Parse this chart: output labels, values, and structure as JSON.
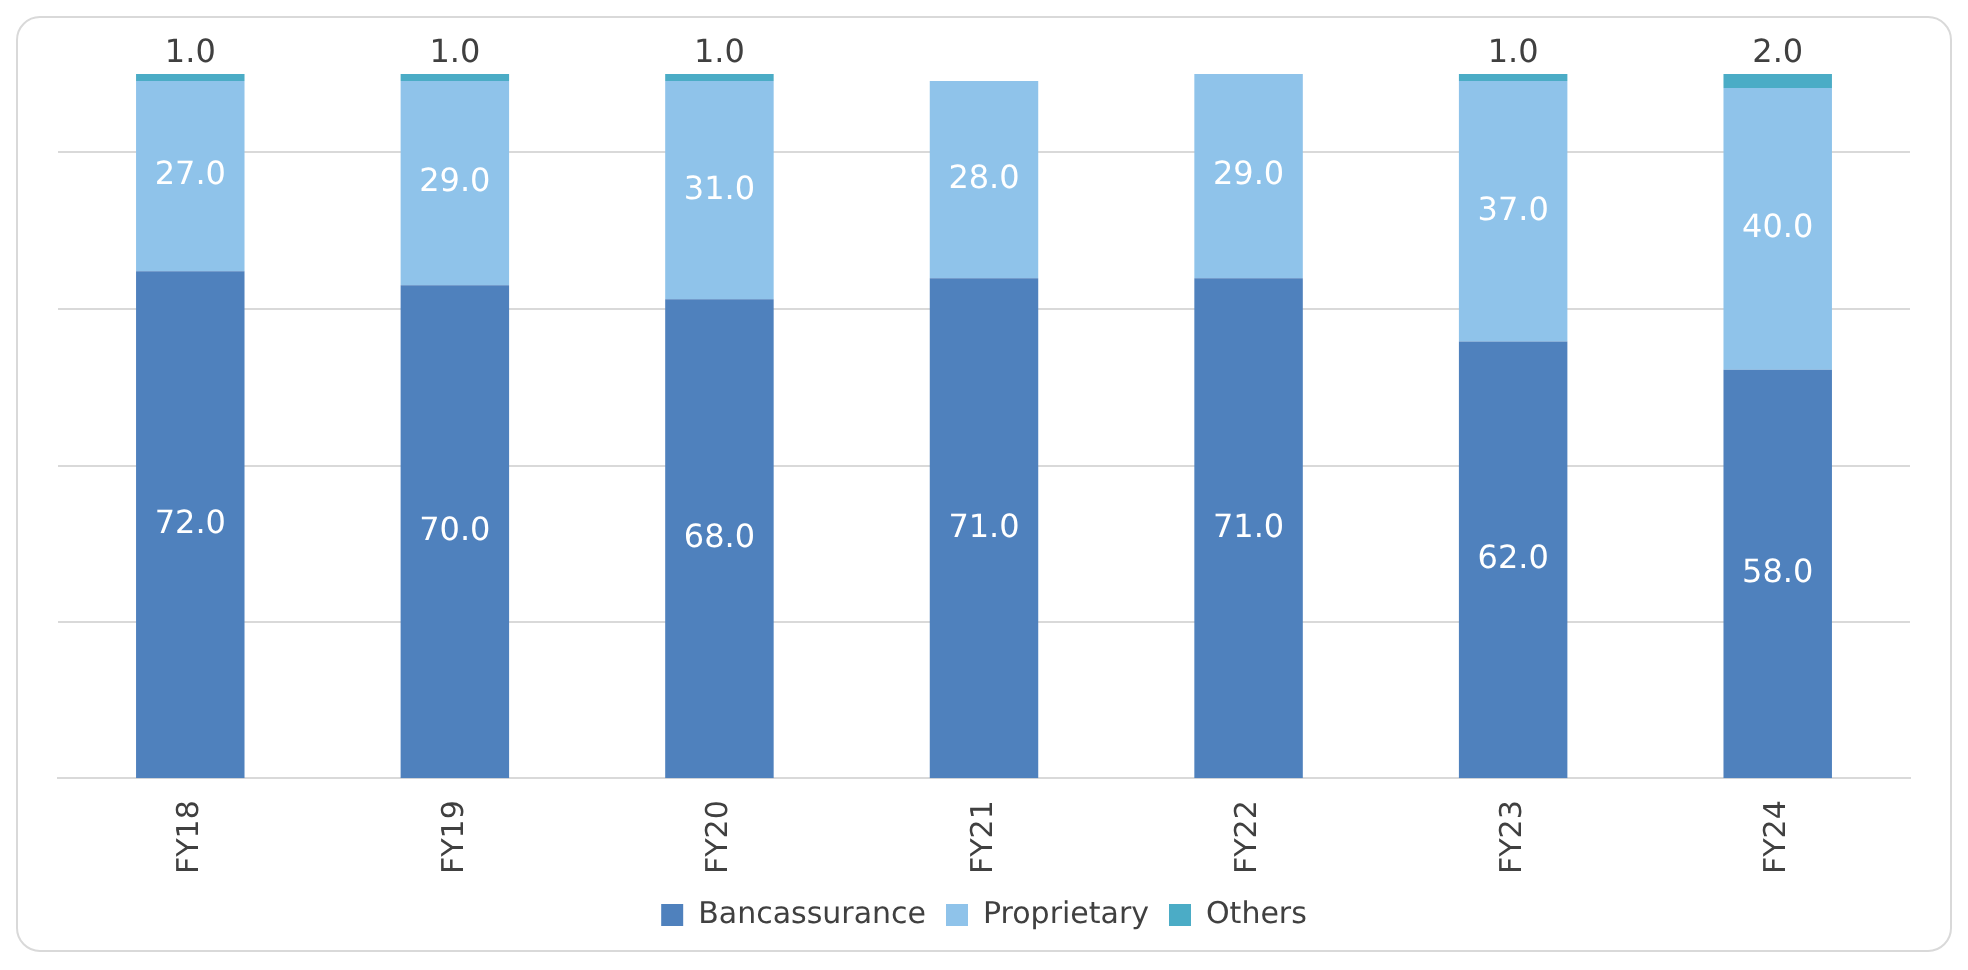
{
  "chart_data": {
    "type": "bar",
    "stacked": true,
    "categories": [
      "FY18",
      "FY19",
      "FY20",
      "FY21",
      "FY22",
      "FY23",
      "FY24"
    ],
    "series": [
      {
        "name": "Bancassurance",
        "color": "#4f81bd",
        "values": [
          72,
          70,
          68,
          71,
          71,
          62,
          58
        ],
        "value_labels": [
          "72.0",
          "70.0",
          "68.0",
          "71.0",
          "71.0",
          "62.0",
          "58.0"
        ]
      },
      {
        "name": "Proprietary",
        "color": "#8fc3ea",
        "values": [
          27,
          29,
          31,
          28,
          29,
          37,
          40
        ],
        "value_labels": [
          "27.0",
          "29.0",
          "31.0",
          "28.0",
          "29.0",
          "37.0",
          "40.0"
        ]
      },
      {
        "name": "Others",
        "color": "#4bacc6",
        "values": [
          1,
          1,
          1,
          0,
          0,
          1,
          2
        ],
        "value_labels": [
          "1.0",
          "1.0",
          "1.0",
          null,
          null,
          "1.0",
          "2.0"
        ]
      }
    ],
    "ylim": [
      0,
      100
    ],
    "yticks": [
      {
        "value": 22.2,
        "label": null
      },
      {
        "value": 44.4,
        "label": null
      },
      {
        "value": 66.7,
        "label": null
      },
      {
        "value": 88.9,
        "label": null
      }
    ],
    "grid": "y",
    "tick_labels": "x",
    "legend": "bottom"
  }
}
